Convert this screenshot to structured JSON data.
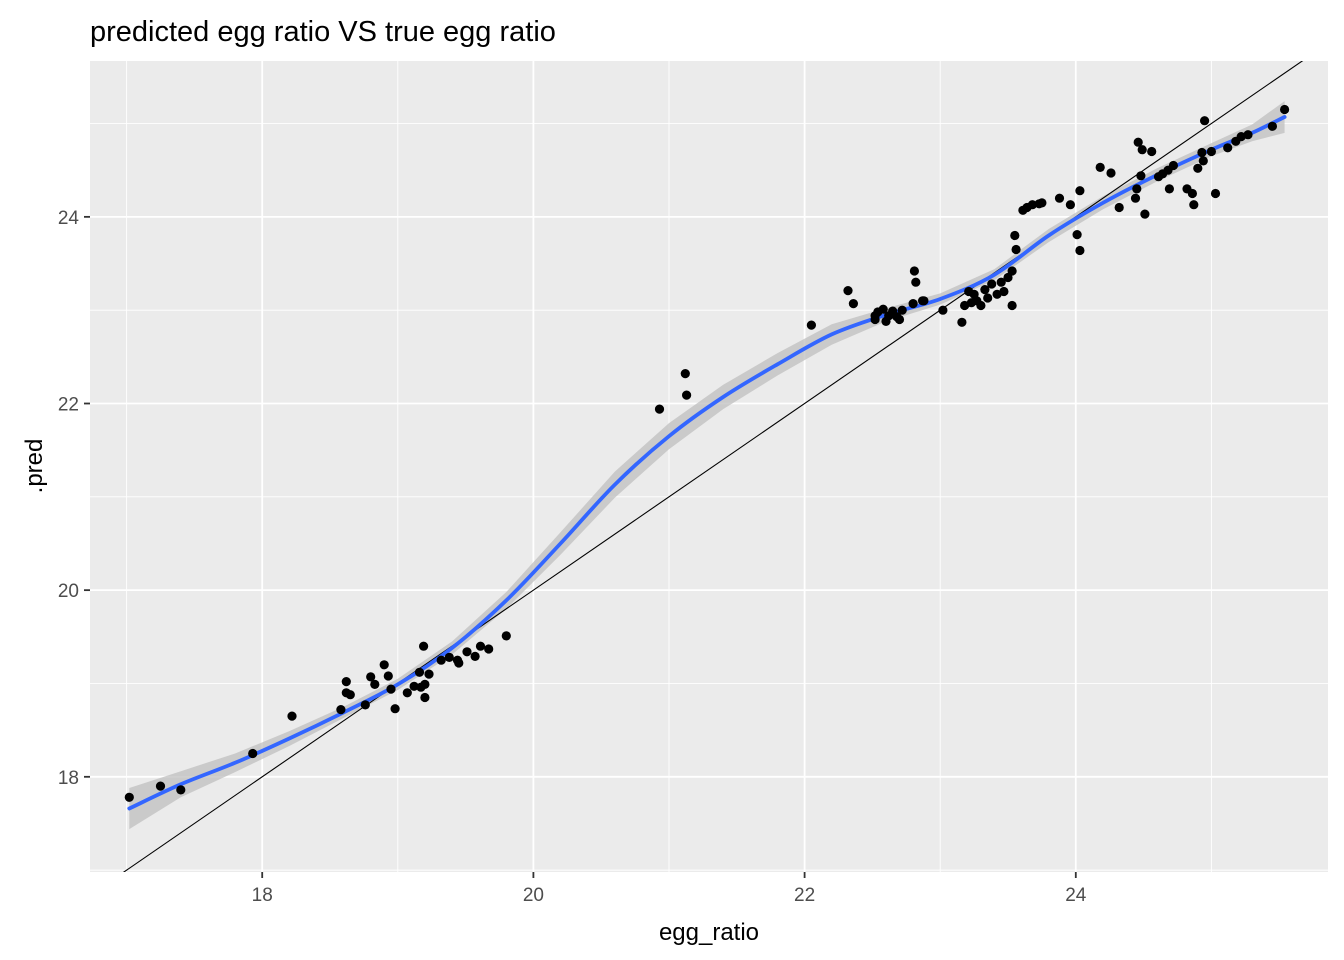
{
  "chart_data": {
    "type": "scatter",
    "title": "predicted egg ratio VS true egg ratio",
    "xlabel": "egg_ratio",
    "ylabel": ".pred",
    "xlim": [
      16.73,
      25.86
    ],
    "ylim": [
      16.98,
      25.67
    ],
    "x_ticks": [
      18,
      20,
      22,
      24
    ],
    "y_ticks": [
      18,
      20,
      22,
      24
    ],
    "x_tick_labels": [
      "18",
      "20",
      "22",
      "24"
    ],
    "y_tick_labels": [
      "18",
      "20",
      "22",
      "24"
    ],
    "grid": true,
    "legend": "none",
    "colors": {
      "panel": "#ebebeb",
      "grid": "#ffffff",
      "points": "#000000",
      "smooth": "#3366ff",
      "ribbon": "#bfbfbf",
      "identity": "#000000"
    },
    "reference_line": {
      "type": "identity",
      "slope": 1,
      "intercept": 0
    },
    "points": {
      "x": [
        17.02,
        17.25,
        17.4,
        17.93,
        18.22,
        18.58,
        18.62,
        18.62,
        18.65,
        18.76,
        18.8,
        18.83,
        18.9,
        18.93,
        18.95,
        18.98,
        19.07,
        19.12,
        19.16,
        19.17,
        19.19,
        19.2,
        19.2,
        19.23,
        19.32,
        19.38,
        19.44,
        19.45,
        19.51,
        19.57,
        19.61,
        19.67,
        19.8,
        20.93,
        21.12,
        21.13,
        22.05,
        22.32,
        22.36,
        22.52,
        22.52,
        22.54,
        22.58,
        22.6,
        22.62,
        22.65,
        22.68,
        22.7,
        22.72,
        22.8,
        22.81,
        22.82,
        22.87,
        22.88,
        23.02,
        23.16,
        23.18,
        23.21,
        23.23,
        23.25,
        23.27,
        23.3,
        23.33,
        23.35,
        23.38,
        23.42,
        23.45,
        23.47,
        23.5,
        23.53,
        23.53,
        23.55,
        23.56,
        23.61,
        23.64,
        23.68,
        23.73,
        23.75,
        23.88,
        23.96,
        24.01,
        24.03,
        24.03,
        24.18,
        24.26,
        24.32,
        24.44,
        24.45,
        24.46,
        24.48,
        24.49,
        24.51,
        24.56,
        24.61,
        24.64,
        24.68,
        24.69,
        24.72,
        24.82,
        24.86,
        24.87,
        24.9,
        24.93,
        24.94,
        24.95,
        25.0,
        25.03,
        25.12,
        25.18,
        25.22,
        25.27,
        25.45,
        25.54
      ],
      "y": [
        17.78,
        17.9,
        17.86,
        18.25,
        18.65,
        18.72,
        18.9,
        19.02,
        18.88,
        18.77,
        19.07,
        18.99,
        19.2,
        19.08,
        18.94,
        18.73,
        18.9,
        18.97,
        19.12,
        18.96,
        19.4,
        18.85,
        18.99,
        19.1,
        19.25,
        19.28,
        19.25,
        19.22,
        19.34,
        19.29,
        19.4,
        19.37,
        19.51,
        21.94,
        22.32,
        22.09,
        22.84,
        23.21,
        23.07,
        22.94,
        22.9,
        22.98,
        23.01,
        22.88,
        22.94,
        22.99,
        22.93,
        22.9,
        23.0,
        23.07,
        23.42,
        23.3,
        23.1,
        23.1,
        23.0,
        22.87,
        23.05,
        23.2,
        23.08,
        23.17,
        23.1,
        23.05,
        23.22,
        23.13,
        23.28,
        23.17,
        23.3,
        23.2,
        23.35,
        23.05,
        23.42,
        23.8,
        23.65,
        24.07,
        24.1,
        24.13,
        24.14,
        24.15,
        24.2,
        24.13,
        23.81,
        24.28,
        23.64,
        24.53,
        24.47,
        24.1,
        24.2,
        24.3,
        24.8,
        24.44,
        24.72,
        24.03,
        24.7,
        24.43,
        24.46,
        24.5,
        24.3,
        24.55,
        24.3,
        24.25,
        24.13,
        24.52,
        24.69,
        24.6,
        25.03,
        24.7,
        24.25,
        24.74,
        24.81,
        24.86,
        24.88,
        24.97,
        25.15
      ]
    },
    "smooth": {
      "x": [
        17.02,
        17.4,
        17.8,
        18.2,
        18.6,
        19.0,
        19.4,
        19.8,
        20.2,
        20.6,
        21.0,
        21.4,
        21.8,
        22.2,
        22.6,
        23.0,
        23.4,
        23.8,
        24.2,
        24.6,
        25.0,
        25.3,
        25.54
      ],
      "y": [
        17.66,
        17.92,
        18.15,
        18.41,
        18.69,
        18.99,
        19.38,
        19.89,
        20.5,
        21.13,
        21.65,
        22.07,
        22.42,
        22.74,
        22.95,
        23.12,
        23.38,
        23.8,
        24.15,
        24.45,
        24.72,
        24.9,
        25.07
      ],
      "se": [
        0.22,
        0.14,
        0.1,
        0.08,
        0.06,
        0.06,
        0.07,
        0.09,
        0.12,
        0.14,
        0.14,
        0.13,
        0.12,
        0.11,
        0.07,
        0.06,
        0.06,
        0.07,
        0.07,
        0.07,
        0.07,
        0.09,
        0.17
      ]
    }
  }
}
